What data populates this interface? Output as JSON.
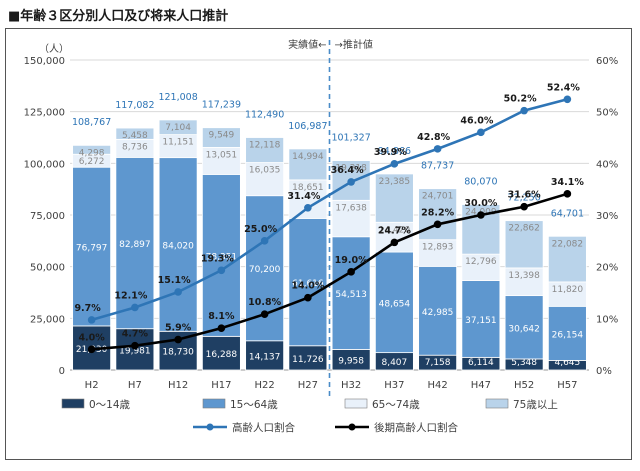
{
  "title": "■年齢３区分別人口及び将来人口推計",
  "chart_data": {
    "type": "bar",
    "stacked": true,
    "categories": [
      "H2",
      "H7",
      "H12",
      "H17",
      "H22",
      "H27",
      "H32",
      "H37",
      "H42",
      "H47",
      "H52",
      "H57"
    ],
    "y_left": {
      "label": "（人）",
      "range": [
        0,
        150000
      ],
      "ticks": [
        "0",
        "25,000",
        "50,000",
        "75,000",
        "100,000",
        "125,000",
        "150,000"
      ]
    },
    "y_right": {
      "range": [
        0,
        60
      ],
      "ticks": [
        "0%",
        "10%",
        "20%",
        "30%",
        "40%",
        "50%",
        "60%"
      ]
    },
    "divider": {
      "between": [
        "H27",
        "H32"
      ],
      "left_label": "実績値←",
      "right_label": "→推計値"
    },
    "series": [
      {
        "name": "0～14歳",
        "color": "#1f3f63",
        "values": [
          21330,
          19981,
          18730,
          16288,
          14137,
          11726,
          9958,
          8407,
          7158,
          6114,
          5348,
          4645
        ],
        "labels": [
          "21,330",
          "19,981",
          "18,730",
          "16,288",
          "14,137",
          "11,726",
          "9,958",
          "8,407",
          "7,158",
          "6,114",
          "5,348",
          "4,645"
        ]
      },
      {
        "name": "15～64歳",
        "color": "#5e97cf",
        "values": [
          76797,
          82897,
          84020,
          78351,
          70200,
          61616,
          54513,
          48654,
          42985,
          37151,
          30642,
          26154
        ],
        "labels": [
          "76,797",
          "82,897",
          "84,020",
          "78,351",
          "70,200",
          "61,616",
          "54,513",
          "48,654",
          "42,985",
          "37,151",
          "30,642",
          "26,154"
        ]
      },
      {
        "name": "65～74歳",
        "color": "#e9f1fa",
        "values": [
          6272,
          8736,
          11151,
          13051,
          16035,
          18651,
          17638,
          14420,
          12893,
          12796,
          13398,
          11820
        ],
        "labels": [
          "6,272",
          "8,736",
          "11,151",
          "13,051",
          "16,035",
          "18,651",
          "17,638",
          "14,420",
          "12,893",
          "12,796",
          "13,398",
          "11,820"
        ]
      },
      {
        "name": "75歳以上",
        "color": "#b9d3ea",
        "values": [
          4298,
          5458,
          7104,
          9549,
          12118,
          14994,
          19218,
          23385,
          24701,
          24009,
          22862,
          22082
        ],
        "labels": [
          "4,298",
          "5,458",
          "7,104",
          "9,549",
          "12,118",
          "14,994",
          "19,218",
          "23,385",
          "24,701",
          "24,009",
          "22,862",
          "22,082"
        ]
      }
    ],
    "totals": {
      "values": [
        108767,
        117082,
        121008,
        117239,
        112490,
        106987,
        101327,
        94866,
        87737,
        80070,
        72250,
        64701
      ],
      "labels": [
        "108,767",
        "117,082",
        "121,008",
        "117,239",
        "112,490",
        "106,987",
        "101,327",
        "94,866",
        "87,737",
        "80,070",
        "72,250",
        "64,701"
      ]
    },
    "lines": [
      {
        "name": "高齢人口割合",
        "color": "#2e75b6",
        "axis": "right",
        "values": [
          9.7,
          12.1,
          15.1,
          19.3,
          25.0,
          31.4,
          36.4,
          39.9,
          42.8,
          46.0,
          50.2,
          52.4
        ],
        "labels": [
          "9.7%",
          "12.1%",
          "15.1%",
          "19.3%",
          "25.0%",
          "31.4%",
          "36.4%",
          "39.9%",
          "42.8%",
          "46.0%",
          "50.2%",
          "52.4%"
        ]
      },
      {
        "name": "後期高齢人口割合",
        "color": "#000000",
        "axis": "right",
        "values": [
          4.0,
          4.7,
          5.9,
          8.1,
          10.8,
          14.0,
          19.0,
          24.7,
          28.2,
          30.0,
          31.6,
          34.1
        ],
        "labels": [
          "4.0%",
          "4.7%",
          "5.9%",
          "8.1%",
          "10.8%",
          "14.0%",
          "19.0%",
          "24.7%",
          "28.2%",
          "30.0%",
          "31.6%",
          "34.1%"
        ]
      }
    ],
    "legend": "bottom",
    "grid": true
  }
}
